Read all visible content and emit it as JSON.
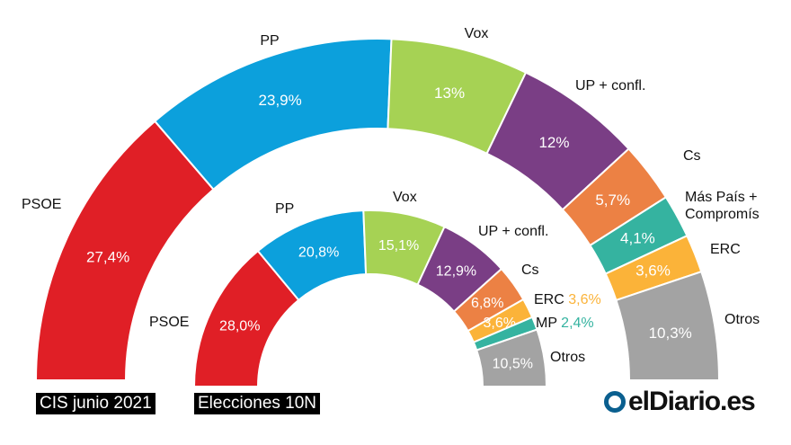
{
  "chart_data": [
    {
      "type": "pie",
      "subtype": "semicircle-donut",
      "tag": "CIS junio 2021",
      "categories": [
        "PSOE",
        "PP",
        "Vox",
        "UP + confl.",
        "Cs",
        "Más País + Compromís",
        "ERC",
        "Otros"
      ],
      "values": [
        27.4,
        23.9,
        13,
        12,
        5.7,
        4.1,
        3.6,
        10.3
      ],
      "value_labels": [
        "27,4%",
        "23,9%",
        "13%",
        "12%",
        "5,7%",
        "4,1%",
        "3,6%",
        "10,3%"
      ]
    },
    {
      "type": "pie",
      "subtype": "semicircle-donut",
      "tag": "Elecciones 10N",
      "categories": [
        "PSOE",
        "PP",
        "Vox",
        "UP + confl.",
        "Cs",
        "ERC",
        "MP",
        "Otros"
      ],
      "values": [
        28.0,
        20.8,
        15.1,
        12.9,
        6.8,
        3.6,
        2.4,
        10.5
      ],
      "value_labels": [
        "28,0%",
        "20,8%",
        "15,1%",
        "12,9%",
        "6,8%",
        "3,6%",
        "2,4%",
        "10,5%"
      ]
    }
  ],
  "colors": {
    "PSOE": "#e01f26",
    "PP": "#0ca0dc",
    "Vox": "#a6d254",
    "UP": "#7a3e85",
    "Cs": "#ec8144",
    "MP": "#35b3a0",
    "ERC": "#fbb339",
    "Otros": "#a3a3a3"
  },
  "logo": "elDiario.es"
}
